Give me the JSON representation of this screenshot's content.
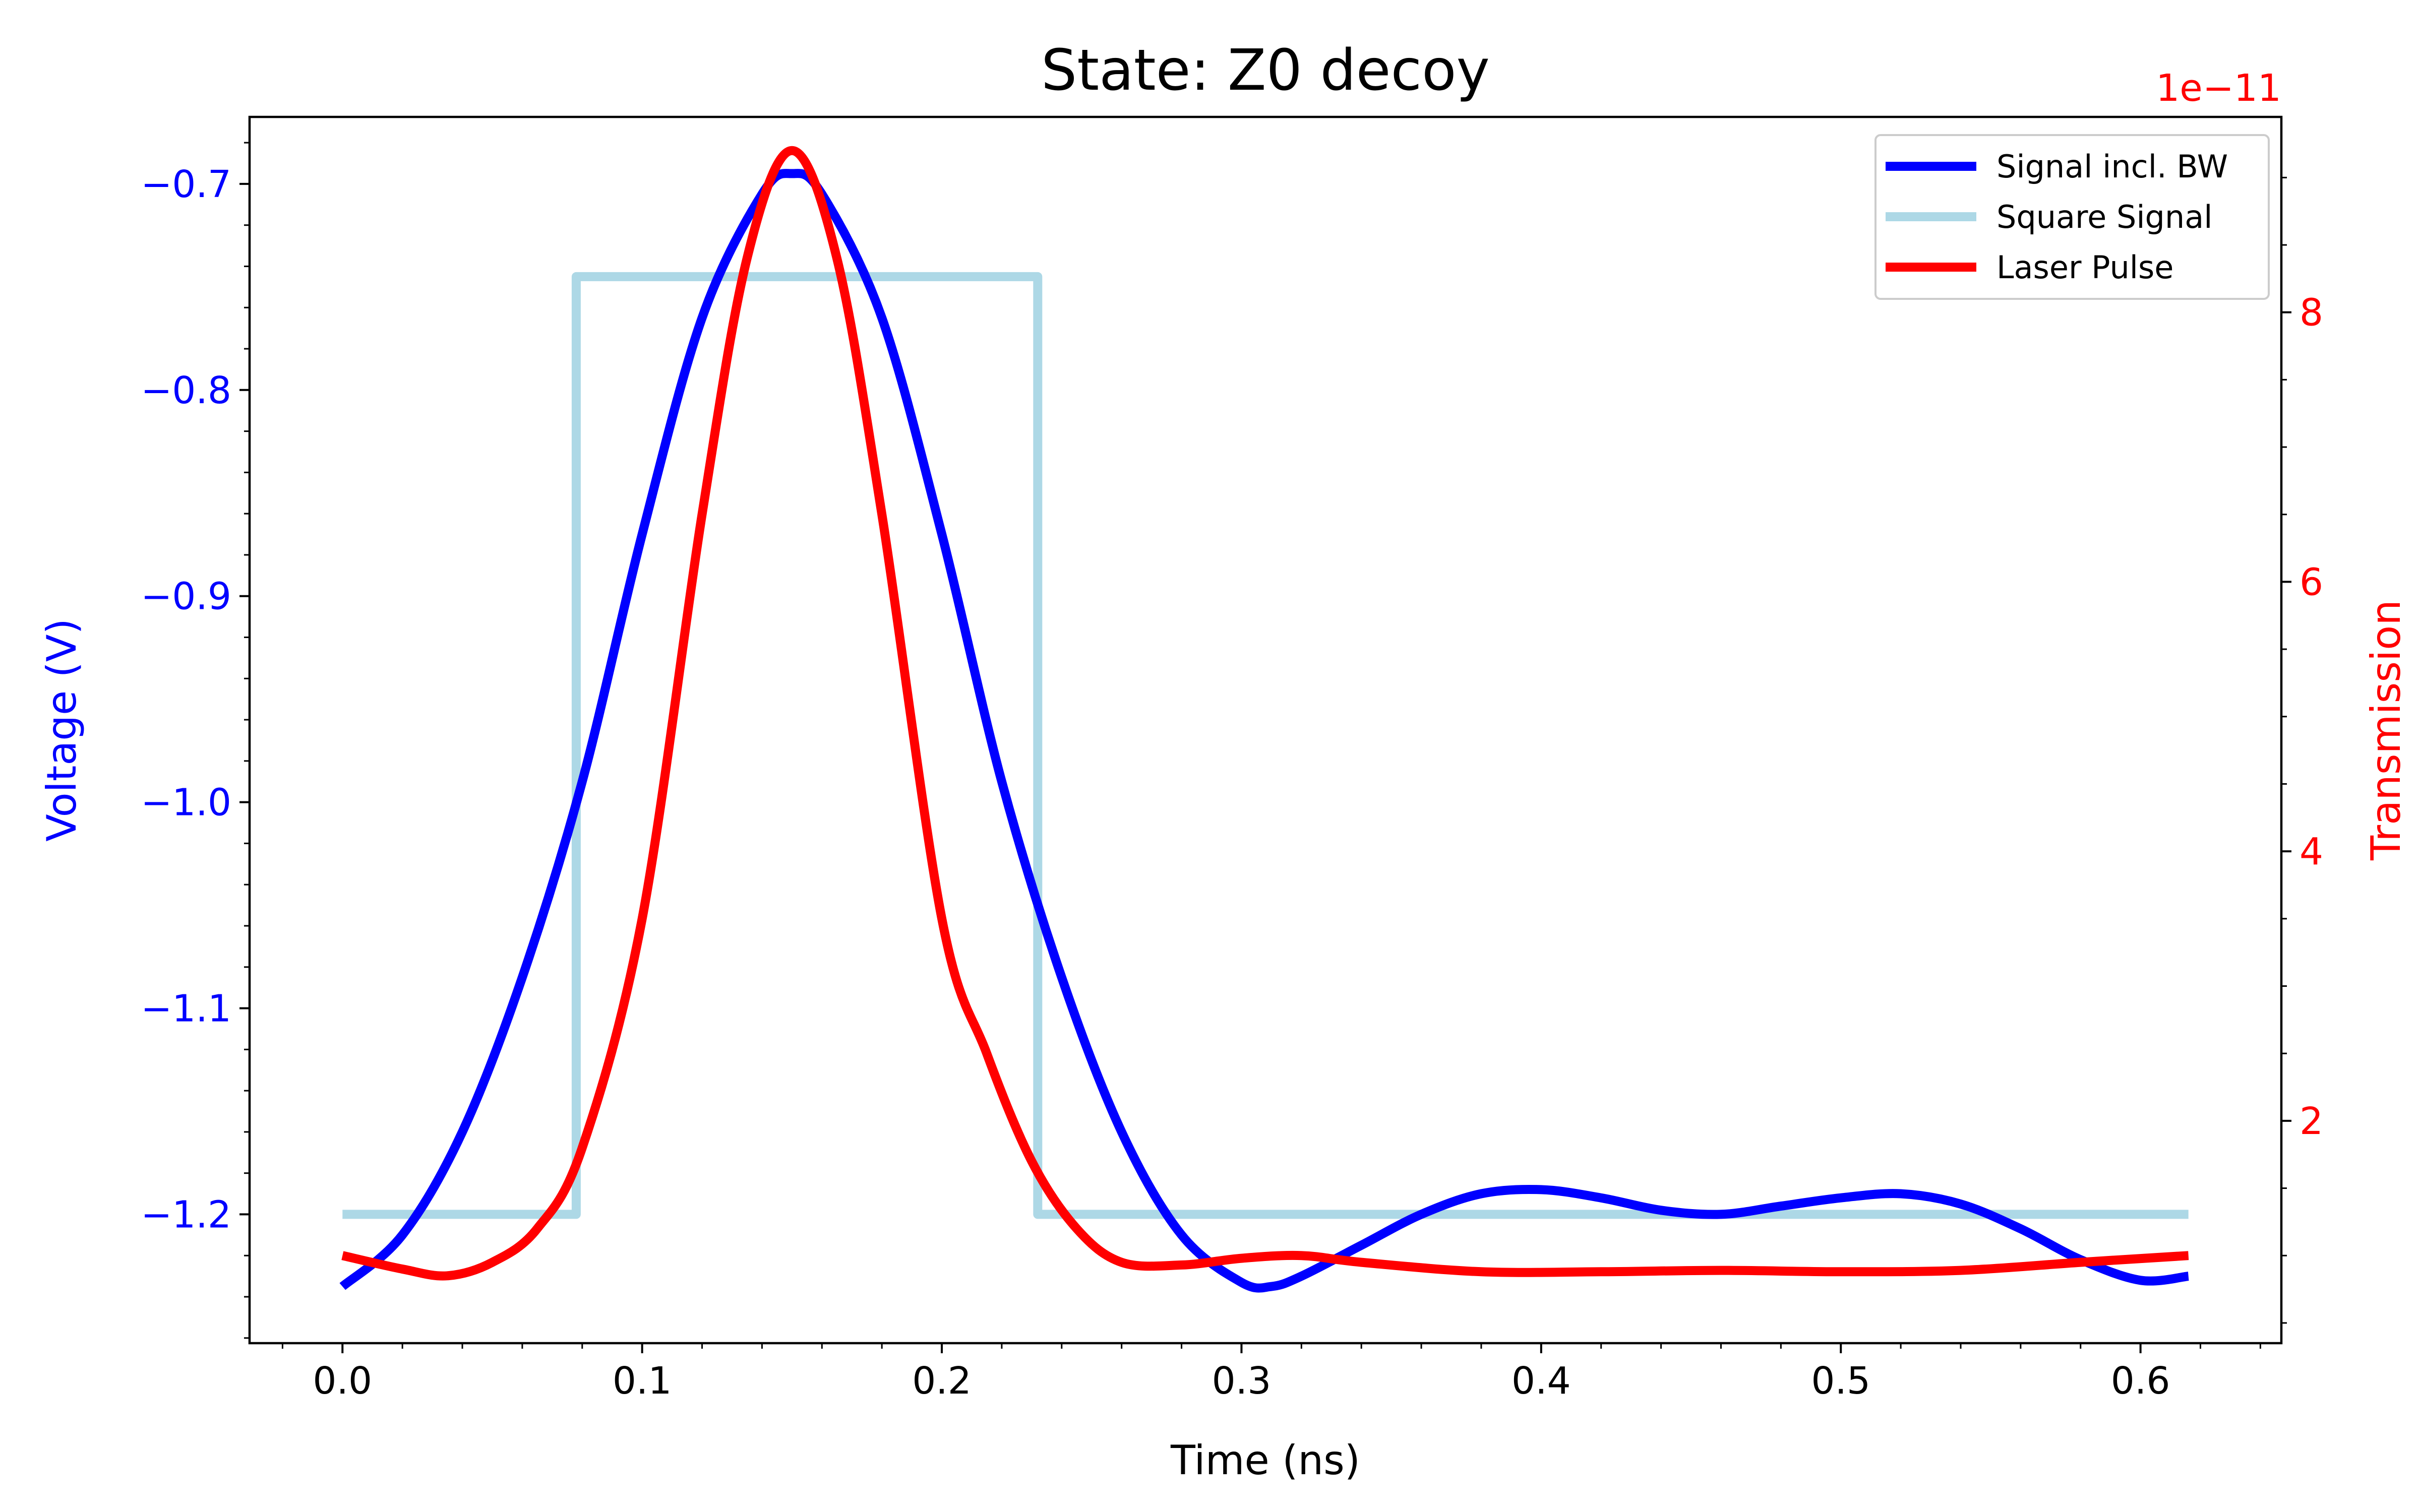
{
  "chart_data": {
    "type": "line",
    "title": "State: Z0 decoy",
    "xlabel": "Time (ns)",
    "ylabel_left": "Voltage (V)",
    "ylabel_right": "Transmission",
    "right_axis_multiplier": "1e−11",
    "xlim": [
      -0.031,
      0.647
    ],
    "ylim_left": [
      -1.2625,
      -0.6675
    ],
    "ylim_right": [
      0.35,
      9.45
    ],
    "x_ticks": [
      0.0,
      0.1,
      0.2,
      0.3,
      0.4,
      0.5,
      0.6
    ],
    "x_tick_labels": [
      "0.0",
      "0.1",
      "0.2",
      "0.3",
      "0.4",
      "0.5",
      "0.6"
    ],
    "y_left_ticks": [
      -1.2,
      -1.1,
      -1.0,
      -0.9,
      -0.8,
      -0.7
    ],
    "y_left_tick_labels": [
      "−1.2",
      "−1.1",
      "−1.0",
      "−0.9",
      "−0.8",
      "−0.7"
    ],
    "y_right_ticks": [
      2,
      4,
      6,
      8
    ],
    "y_right_tick_labels": [
      "2",
      "4",
      "6",
      "8"
    ],
    "grid": false,
    "legend_position": "top-right",
    "colors": {
      "left_axis": "#0000ff",
      "right_axis": "#ff0000",
      "signal": "#0000ff",
      "square": "#add8e6",
      "laser": "#ff0000"
    },
    "series": [
      {
        "name": "Signal incl. BW",
        "axis": "left",
        "color": "#0000ff",
        "x": [
          0.0,
          0.02,
          0.04,
          0.06,
          0.08,
          0.1,
          0.12,
          0.14,
          0.15,
          0.16,
          0.18,
          0.2,
          0.22,
          0.24,
          0.26,
          0.28,
          0.3,
          0.31,
          0.32,
          0.34,
          0.36,
          0.38,
          0.4,
          0.42,
          0.44,
          0.46,
          0.48,
          0.5,
          0.52,
          0.54,
          0.56,
          0.58,
          0.6,
          0.616
        ],
        "y": [
          -1.235,
          -1.21,
          -1.16,
          -1.085,
          -0.99,
          -0.87,
          -0.765,
          -0.705,
          -0.695,
          -0.705,
          -0.765,
          -0.87,
          -0.99,
          -1.085,
          -1.16,
          -1.21,
          -1.233,
          -1.235,
          -1.23,
          -1.215,
          -1.2,
          -1.19,
          -1.188,
          -1.192,
          -1.198,
          -1.2,
          -1.196,
          -1.192,
          -1.19,
          -1.195,
          -1.207,
          -1.222,
          -1.232,
          -1.23
        ]
      },
      {
        "name": "Square Signal",
        "axis": "left",
        "color": "#add8e6",
        "x": [
          0.0,
          0.078,
          0.078,
          0.232,
          0.232,
          0.616
        ],
        "y": [
          -1.2,
          -1.2,
          -0.745,
          -0.745,
          -1.2,
          -1.2
        ]
      },
      {
        "name": "Laser Pulse",
        "axis": "right",
        "color": "#ff0000",
        "x": [
          0.0,
          0.02,
          0.035,
          0.05,
          0.065,
          0.08,
          0.1,
          0.12,
          0.135,
          0.15,
          0.165,
          0.18,
          0.2,
          0.215,
          0.23,
          0.245,
          0.26,
          0.28,
          0.3,
          0.32,
          0.34,
          0.38,
          0.42,
          0.46,
          0.5,
          0.54,
          0.58,
          0.616
        ],
        "y": [
          1.0,
          0.9,
          0.85,
          0.95,
          1.2,
          1.8,
          3.5,
          6.5,
          8.4,
          9.2,
          8.4,
          6.5,
          3.5,
          2.5,
          1.7,
          1.2,
          0.95,
          0.93,
          0.98,
          1.0,
          0.95,
          0.88,
          0.88,
          0.89,
          0.88,
          0.89,
          0.95,
          1.0
        ]
      }
    ]
  }
}
